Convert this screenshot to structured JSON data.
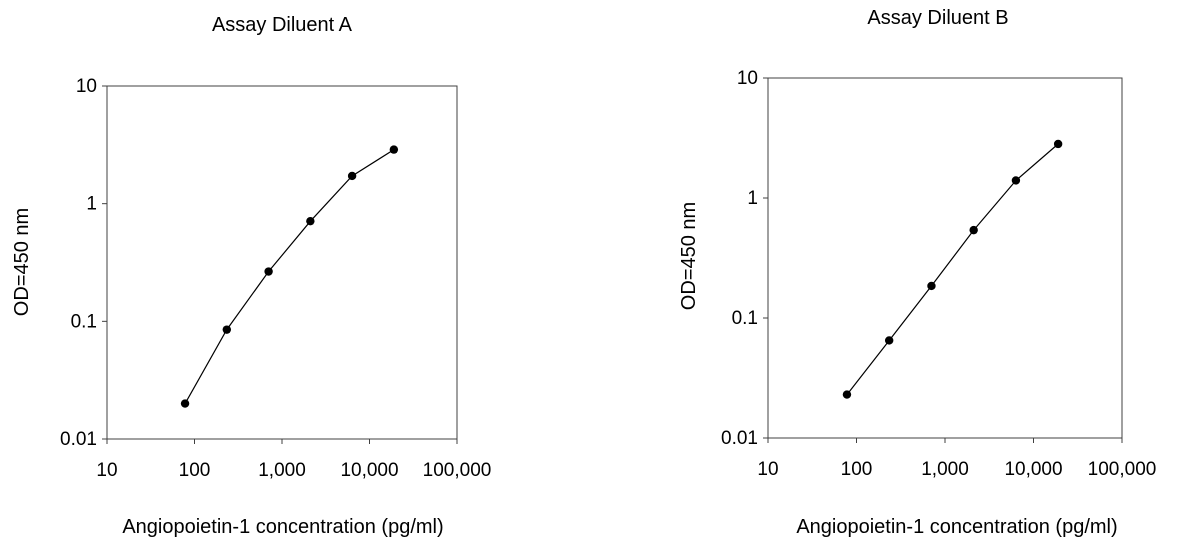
{
  "chart_data": [
    {
      "type": "line",
      "title": "Assay Diluent A",
      "xlabel": "Angiopoietin-1 concentration (pg/ml)",
      "ylabel": "OD=450 nm",
      "x_scale": "log",
      "y_scale": "log",
      "xlim": [
        10,
        100000
      ],
      "ylim": [
        0.01,
        10
      ],
      "x_ticks": [
        10,
        100,
        1000,
        10000,
        100000
      ],
      "x_tick_labels": [
        "10",
        "100",
        "1,000",
        "10,000",
        "100,000"
      ],
      "y_ticks": [
        0.01,
        0.1,
        1,
        10
      ],
      "y_tick_labels": [
        "0.01",
        "0.1",
        "1",
        "10"
      ],
      "grid": false,
      "legend": "none",
      "series": [
        {
          "x": [
            78,
            234,
            703,
            2109,
            6328,
            18984
          ],
          "y": [
            0.02,
            0.085,
            0.265,
            0.71,
            1.72,
            2.88
          ]
        }
      ]
    },
    {
      "type": "line",
      "title": "Assay Diluent B",
      "xlabel": "Angiopoietin-1 concentration (pg/ml)",
      "ylabel": "OD=450 nm",
      "x_scale": "log",
      "y_scale": "log",
      "xlim": [
        10,
        100000
      ],
      "ylim": [
        0.01,
        10
      ],
      "x_ticks": [
        10,
        100,
        1000,
        10000,
        100000
      ],
      "x_tick_labels": [
        "10",
        "100",
        "1,000",
        "10,000",
        "100,000"
      ],
      "y_ticks": [
        0.01,
        0.1,
        1,
        10
      ],
      "y_tick_labels": [
        "0.01",
        "0.1",
        "1",
        "10"
      ],
      "grid": false,
      "legend": "none",
      "series": [
        {
          "x": [
            78,
            234,
            703,
            2109,
            6328,
            18984
          ],
          "y": [
            0.023,
            0.065,
            0.185,
            0.54,
            1.4,
            2.82
          ]
        }
      ]
    }
  ],
  "colors": {
    "axis": "#404040",
    "line": "#000000",
    "marker": "#000000",
    "text": "#000000"
  }
}
